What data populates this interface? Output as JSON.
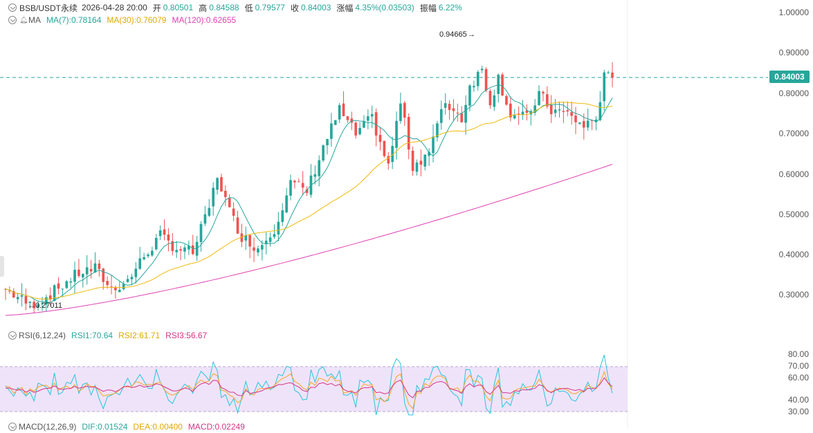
{
  "header": {
    "symbol": "BSB/USDT永续",
    "datetime": "2026-04-28 20:00",
    "open_label": "开",
    "open": "0.80501",
    "high_label": "高",
    "high": "0.84588",
    "low_label": "低",
    "low": "0.79577",
    "close_label": "收",
    "close": "0.84003",
    "change_label": "涨幅",
    "change": "4.35%(0.03503)",
    "amp_label": "振幅",
    "amp": "6.22%"
  },
  "ma_legend": {
    "name": "MA",
    "ma7": "MA(7):0.78164",
    "ma30": "MA(30):0.76079",
    "ma120": "MA(120):0.62655"
  },
  "rsi_legend": {
    "name": "RSI(6,12,24)",
    "rsi1": "RSI1:70.64",
    "rsi2": "RSI2:61.71",
    "rsi3": "RSI3:56.67"
  },
  "macd_legend": {
    "name": "MACD(12,26,9)",
    "dif": "DIF:0.01524",
    "dea": "DEA:0.00400",
    "macd": "MACD:0.02249"
  },
  "price_axis": [
    "1.00000",
    "0.90000",
    "0.80000",
    "0.70000",
    "0.60000",
    "0.50000",
    "0.40000",
    "0.30000"
  ],
  "last_price": "0.84003",
  "high_marker": "0.94665",
  "low_marker": "0.27011",
  "rsi_axis": [
    "80.00",
    "70.00",
    "60.00",
    "40.00",
    "30.00"
  ],
  "colors": {
    "up": "#26a69a",
    "down": "#ef5350",
    "ma7": "#26a69a",
    "ma30": "#f0b90b",
    "ma120": "#e040b4",
    "rsi1": "#26c6da",
    "rsi2": "#f5a623",
    "rsi3": "#d63384",
    "rsi_band": "#efe3fa"
  },
  "chart_data": {
    "type": "candlestick",
    "price_range": [
      0.26,
      1.0
    ],
    "ohlc_close_start": 0.32,
    "last_close": 0.84003,
    "marked_high": 0.94665,
    "marked_low": 0.27011,
    "ma120_range": [
      0.255,
      0.62655
    ],
    "rsi_range": [
      30,
      80
    ],
    "rsi_band": [
      30,
      70
    ]
  }
}
